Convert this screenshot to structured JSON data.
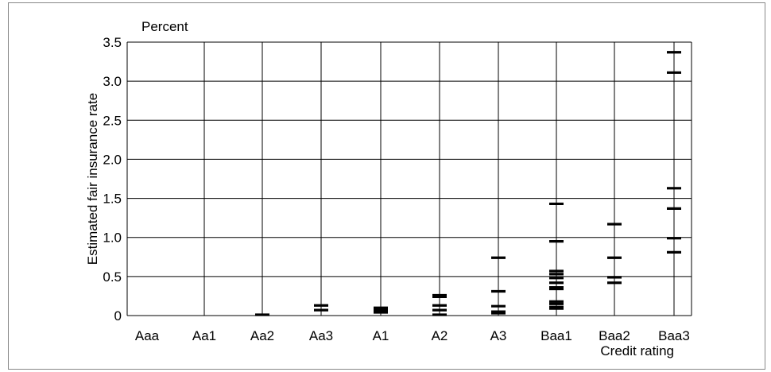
{
  "chart_data": {
    "type": "scatter",
    "title": "",
    "unit_label": "Percent",
    "xlabel": "Credit rating",
    "ylabel": "Estimated fair insurance rate",
    "ylim": [
      0,
      3.5
    ],
    "yticks": [
      "0",
      "0.5",
      "1.0",
      "1.5",
      "2.0",
      "2.5",
      "3.0",
      "3.5"
    ],
    "categories": [
      "Aaa",
      "Aa1",
      "Aa2",
      "Aa3",
      "A1",
      "A2",
      "A3",
      "Baa1",
      "Baa2",
      "Baa3"
    ],
    "grid": true,
    "marker": "horizontal dash",
    "points": [
      {
        "x": "Aa2",
        "y": 0.0
      },
      {
        "x": "Aa3",
        "y": 0.13
      },
      {
        "x": "Aa3",
        "y": 0.07
      },
      {
        "x": "A1",
        "y": 0.1
      },
      {
        "x": "A1",
        "y": 0.08
      },
      {
        "x": "A1",
        "y": 0.06
      },
      {
        "x": "A1",
        "y": 0.04
      },
      {
        "x": "A2",
        "y": 0.26
      },
      {
        "x": "A2",
        "y": 0.24
      },
      {
        "x": "A2",
        "y": 0.13
      },
      {
        "x": "A2",
        "y": 0.07
      },
      {
        "x": "A2",
        "y": 0.01
      },
      {
        "x": "A3",
        "y": 0.74
      },
      {
        "x": "A3",
        "y": 0.31
      },
      {
        "x": "A3",
        "y": 0.12
      },
      {
        "x": "A3",
        "y": 0.05
      },
      {
        "x": "A3",
        "y": 0.03
      },
      {
        "x": "Baa1",
        "y": 1.43
      },
      {
        "x": "Baa1",
        "y": 0.95
      },
      {
        "x": "Baa1",
        "y": 0.57
      },
      {
        "x": "Baa1",
        "y": 0.53
      },
      {
        "x": "Baa1",
        "y": 0.48
      },
      {
        "x": "Baa1",
        "y": 0.42
      },
      {
        "x": "Baa1",
        "y": 0.36
      },
      {
        "x": "Baa1",
        "y": 0.34
      },
      {
        "x": "Baa1",
        "y": 0.18
      },
      {
        "x": "Baa1",
        "y": 0.15
      },
      {
        "x": "Baa1",
        "y": 0.11
      },
      {
        "x": "Baa1",
        "y": 0.09
      },
      {
        "x": "Baa2",
        "y": 1.17
      },
      {
        "x": "Baa2",
        "y": 0.74
      },
      {
        "x": "Baa2",
        "y": 0.49
      },
      {
        "x": "Baa2",
        "y": 0.42
      },
      {
        "x": "Baa3",
        "y": 3.37
      },
      {
        "x": "Baa3",
        "y": 3.11
      },
      {
        "x": "Baa3",
        "y": 1.63
      },
      {
        "x": "Baa3",
        "y": 1.37
      },
      {
        "x": "Baa3",
        "y": 0.99
      },
      {
        "x": "Baa3",
        "y": 0.81
      }
    ]
  }
}
